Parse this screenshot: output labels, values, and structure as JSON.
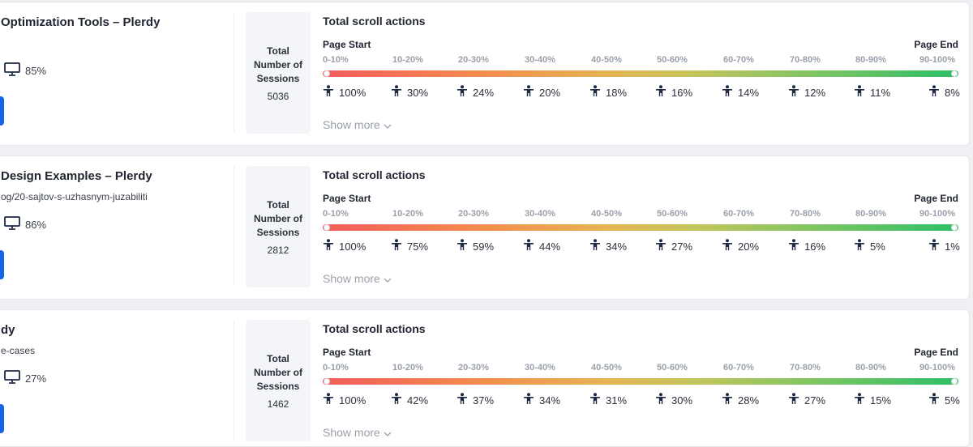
{
  "scroll_title": "Total scroll actions",
  "page_start_label": "Page Start",
  "page_end_label": "Page End",
  "sessions_label_lines": [
    "Total",
    "Number of",
    "Sessions"
  ],
  "show_more_label": "Show more",
  "ranges": [
    "0-10%",
    "10-20%",
    "20-30%",
    "30-40%",
    "40-50%",
    "50-60%",
    "60-70%",
    "70-80%",
    "80-90%",
    "90-100%"
  ],
  "pages": [
    {
      "title": "Optimization Tools – Plerdy",
      "url": "",
      "device_percent": "85%",
      "sessions": "5036",
      "percents": [
        "100%",
        "30%",
        "24%",
        "20%",
        "18%",
        "16%",
        "14%",
        "12%",
        "11%",
        "8%"
      ]
    },
    {
      "title": "Design Examples – Plerdy",
      "url": "og/20-sajtov-s-uzhasnym-juzabiliti",
      "device_percent": "86%",
      "sessions": "2812",
      "percents": [
        "100%",
        "75%",
        "59%",
        "44%",
        "34%",
        "27%",
        "20%",
        "16%",
        "5%",
        "1%"
      ]
    },
    {
      "title": "dy",
      "url": "e-cases",
      "device_percent": "27%",
      "sessions": "1462",
      "percents": [
        "100%",
        "42%",
        "37%",
        "34%",
        "31%",
        "30%",
        "28%",
        "27%",
        "15%",
        "5%"
      ]
    }
  ]
}
